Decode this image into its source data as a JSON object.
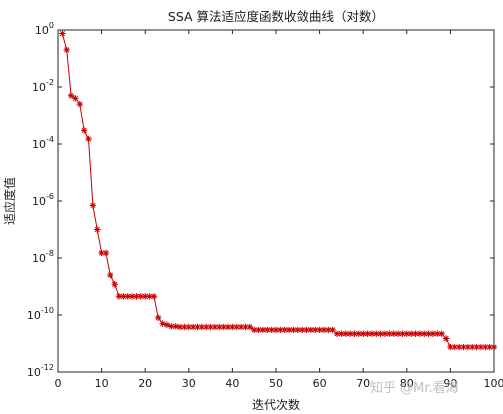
{
  "watermark": "知乎 @Mr.看海",
  "chart_data": {
    "type": "line",
    "title": "SSA 算法适应度函数收敛曲线（对数）",
    "xlabel": "迭代次数",
    "ylabel": "适应度值",
    "x_scale": "linear",
    "y_scale": "log",
    "xlim": [
      0,
      100
    ],
    "ylim": [
      1e-12,
      1
    ],
    "x_ticks": [
      0,
      10,
      20,
      30,
      40,
      50,
      60,
      70,
      80,
      90,
      100
    ],
    "x_tick_labels": [
      "0",
      "10",
      "20",
      "30",
      "40",
      "50",
      "60",
      "70",
      "80",
      "90",
      "100"
    ],
    "y_tick_exponents": [
      0,
      -2,
      -4,
      -6,
      -8,
      -10,
      -12
    ],
    "grid": false,
    "legend": false,
    "line_color": "#cc0000",
    "marker_color": "#cc0000",
    "marker": "asterisk",
    "series": [
      {
        "x": [
          1,
          2,
          3,
          4,
          5,
          6,
          7,
          8,
          9,
          10,
          11,
          12,
          13,
          14,
          15,
          16,
          17,
          18,
          19,
          20,
          21,
          22,
          23,
          24,
          25,
          26,
          27,
          28,
          29,
          30,
          31,
          32,
          33,
          34,
          35,
          36,
          37,
          38,
          39,
          40,
          41,
          42,
          43,
          44,
          45,
          46,
          47,
          48,
          49,
          50,
          51,
          52,
          53,
          54,
          55,
          56,
          57,
          58,
          59,
          60,
          61,
          62,
          63,
          64,
          65,
          66,
          67,
          68,
          69,
          70,
          71,
          72,
          73,
          74,
          75,
          76,
          77,
          78,
          79,
          80,
          81,
          82,
          83,
          84,
          85,
          86,
          87,
          88,
          89,
          90,
          91,
          92,
          93,
          94,
          95,
          96,
          97,
          98,
          99,
          100
        ],
        "y": [
          0.75,
          0.2,
          0.005,
          0.004,
          0.0025,
          0.0003,
          0.00015,
          7e-07,
          1e-07,
          1.5e-08,
          1.5e-08,
          2.5e-09,
          1.2e-09,
          4.5e-10,
          4.5e-10,
          4.5e-10,
          4.5e-10,
          4.5e-10,
          4.5e-10,
          4.5e-10,
          4.5e-10,
          4.5e-10,
          8e-11,
          5e-11,
          4.5e-11,
          4e-11,
          4e-11,
          3.8e-11,
          3.8e-11,
          3.8e-11,
          3.8e-11,
          3.8e-11,
          3.8e-11,
          3.8e-11,
          3.8e-11,
          3.8e-11,
          3.8e-11,
          3.8e-11,
          3.8e-11,
          3.8e-11,
          3.8e-11,
          3.8e-11,
          3.8e-11,
          3.8e-11,
          3e-11,
          3e-11,
          3e-11,
          3e-11,
          3e-11,
          3e-11,
          3e-11,
          3e-11,
          3e-11,
          3e-11,
          3e-11,
          3e-11,
          3e-11,
          3e-11,
          3e-11,
          3e-11,
          3e-11,
          3e-11,
          3e-11,
          2.2e-11,
          2.2e-11,
          2.2e-11,
          2.2e-11,
          2.2e-11,
          2.2e-11,
          2.2e-11,
          2.2e-11,
          2.2e-11,
          2.2e-11,
          2.2e-11,
          2.2e-11,
          2.2e-11,
          2.2e-11,
          2.2e-11,
          2.2e-11,
          2.2e-11,
          2.2e-11,
          2.2e-11,
          2.2e-11,
          2.2e-11,
          2.2e-11,
          2.2e-11,
          2.2e-11,
          2.2e-11,
          1.5e-11,
          7.5e-12,
          7.5e-12,
          7.5e-12,
          7.5e-12,
          7.5e-12,
          7.5e-12,
          7.5e-12,
          7.5e-12,
          7.5e-12,
          7.5e-12,
          7.5e-12
        ]
      }
    ]
  }
}
